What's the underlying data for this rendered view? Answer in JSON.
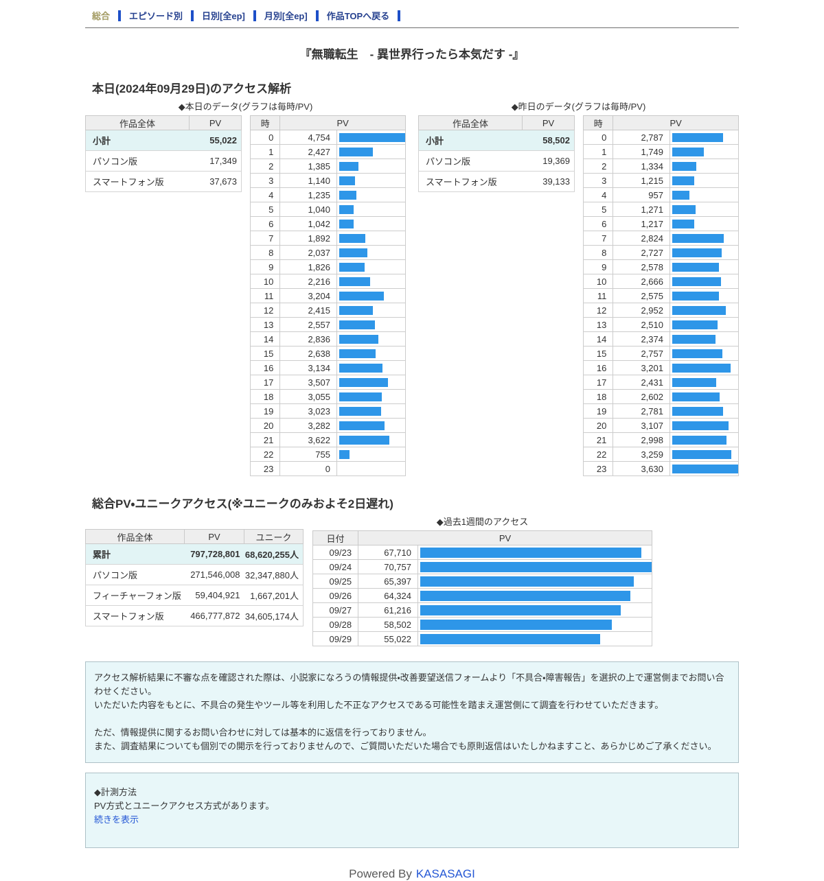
{
  "nav": {
    "current_label": "総合",
    "items": [
      {
        "label": "エピソード別"
      },
      {
        "label": "日別[全ep]"
      },
      {
        "label": "月別[全ep]"
      },
      {
        "label": "作品TOPへ戻る"
      }
    ]
  },
  "page_title": "『無職転生　- 異世界行ったら本気だす -』",
  "today_section": {
    "heading": "本日(2024年09月29日)のアクセス解析",
    "today": {
      "caption": "◆本日のデータ(グラフは毎時/PV)",
      "summary": {
        "headers": [
          "作品全体",
          "PV"
        ],
        "rows": [
          {
            "label": "小計",
            "values": [
              "55,022"
            ],
            "highlight": true
          },
          {
            "label": "パソコン版",
            "values": [
              "17,349"
            ],
            "highlight": false
          },
          {
            "label": "スマートフォン版",
            "values": [
              "37,673"
            ],
            "highlight": false
          }
        ]
      },
      "hourly": {
        "hour_header": "時",
        "pv_header": "PV",
        "values": [
          4754,
          2427,
          1385,
          1140,
          1235,
          1040,
          1042,
          1892,
          2037,
          1826,
          2216,
          3204,
          2415,
          2557,
          2836,
          2638,
          3134,
          3507,
          3055,
          3023,
          3282,
          3622,
          755,
          0
        ]
      }
    },
    "yesterday": {
      "caption": "◆昨日のデータ(グラフは毎時/PV)",
      "summary": {
        "headers": [
          "作品全体",
          "PV"
        ],
        "rows": [
          {
            "label": "小計",
            "values": [
              "58,502"
            ],
            "highlight": true
          },
          {
            "label": "パソコン版",
            "values": [
              "19,369"
            ],
            "highlight": false
          },
          {
            "label": "スマートフォン版",
            "values": [
              "39,133"
            ],
            "highlight": false
          }
        ]
      },
      "hourly": {
        "hour_header": "時",
        "pv_header": "PV",
        "values": [
          2787,
          1749,
          1334,
          1215,
          957,
          1271,
          1217,
          2824,
          2727,
          2578,
          2666,
          2575,
          2952,
          2510,
          2374,
          2757,
          3201,
          2431,
          2602,
          2781,
          3107,
          2998,
          3259,
          3630
        ]
      }
    }
  },
  "total_section": {
    "heading": "総合PV・ユニークアクセス(※ユニークのみおよそ2日遅れ)",
    "summary": {
      "headers": [
        "作品全体",
        "PV",
        "ユニーク"
      ],
      "rows": [
        {
          "label": "累計",
          "values": [
            "797,728,801",
            "68,620,255人"
          ],
          "highlight": true
        },
        {
          "label": "パソコン版",
          "values": [
            "271,546,008",
            "32,347,880人"
          ],
          "highlight": false
        },
        {
          "label": "フィーチャーフォン版",
          "values": [
            "59,404,921",
            "1,667,201人"
          ],
          "highlight": false
        },
        {
          "label": "スマートフォン版",
          "values": [
            "466,777,872",
            "34,605,174人"
          ],
          "highlight": false
        }
      ]
    },
    "weekly": {
      "caption": "◆過去1週間のアクセス",
      "date_header": "日付",
      "pv_header": "PV",
      "rows": [
        {
          "date": "09/23",
          "pv": 67710
        },
        {
          "date": "09/24",
          "pv": 70757
        },
        {
          "date": "09/25",
          "pv": 65397
        },
        {
          "date": "09/26",
          "pv": 64324
        },
        {
          "date": "09/27",
          "pv": 61216
        },
        {
          "date": "09/28",
          "pv": 58502
        },
        {
          "date": "09/29",
          "pv": 55022
        }
      ]
    }
  },
  "notice": {
    "lines": [
      "アクセス解析結果に不審な点を確認された際は、小説家になろうの情報提供・改善要望送信フォームより「不具合・障害報告」を選択の上で運営側までお問い合わせください。",
      "いただいた内容をもとに、不具合の発生やツール等を利用した不正なアクセスである可能性を踏まえ運営側にて調査を行わせていただきます。",
      "ただ、情報提供に関するお問い合わせに対しては基本的に返信を行っておりません。",
      "また、調査結果についても個別での開示を行っておりませんので、ご質問いただいた場合でも原則返信はいたしかねますこと、あらかじめご了承ください。"
    ]
  },
  "method": {
    "title": "◆計測方法",
    "text": "PV方式とユニークアクセス方式があります。",
    "link_label": "続きを表示"
  },
  "footer": {
    "powered_by": "Powered By",
    "link_label": "KASASAGI"
  },
  "colors": {
    "bar": "#2E96E8",
    "hl": "#E2F4F5",
    "link": "#2457D5",
    "nav_link": "#26418F",
    "nav_sep": "#1D4FC8",
    "nav_current": "#A39B63",
    "box_bg": "#E8F7F9",
    "box_border": "#ADC0C6"
  }
}
